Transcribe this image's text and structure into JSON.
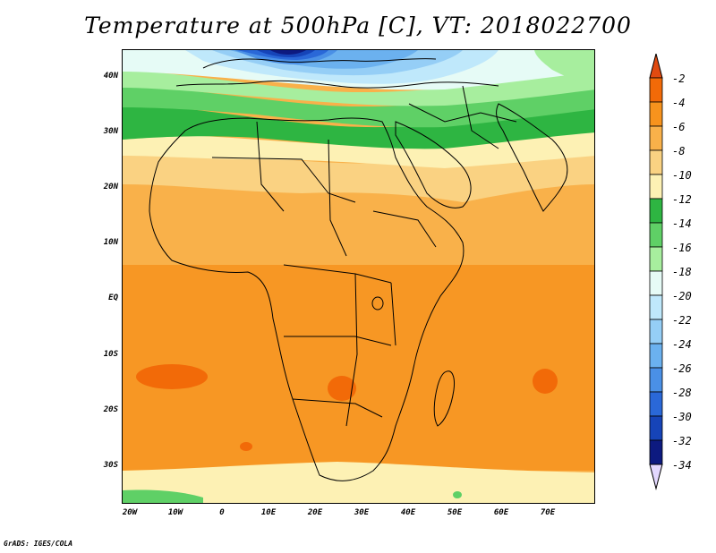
{
  "title": "Temperature at 500hPa [C], VT: 2018022700",
  "credit": "GrADS: IGES/COLA",
  "map": {
    "lat_labels": [
      "40N",
      "30N",
      "20N",
      "10N",
      "EQ",
      "10S",
      "20S",
      "30S"
    ],
    "lon_labels": [
      "20W",
      "10W",
      "0",
      "10E",
      "20E",
      "30E",
      "40E",
      "50E",
      "60E",
      "70E"
    ]
  },
  "colorbar": {
    "labels": [
      "-2",
      "-4",
      "-6",
      "-8",
      "-10",
      "-12",
      "-14",
      "-16",
      "-18",
      "-20",
      "-22",
      "-24",
      "-26",
      "-28",
      "-30",
      "-32",
      "-34"
    ],
    "colors": [
      "#e04a10",
      "#f26a08",
      "#f7931d",
      "#f9b14a",
      "#fad282",
      "#fdf1b4",
      "#2eb542",
      "#5fd066",
      "#a7ee9e",
      "#e6fbf6",
      "#bfe8fb",
      "#95cef6",
      "#6bb1ef",
      "#4a90e6",
      "#2a68d8",
      "#1644b8",
      "#0d1a80",
      "#e3d8ff"
    ],
    "top_arrow_color": "#e04a10",
    "bottom_arrow_color": "#e3d8ff"
  },
  "palette": {
    "frame": "#000000",
    "coast": "#000000"
  }
}
